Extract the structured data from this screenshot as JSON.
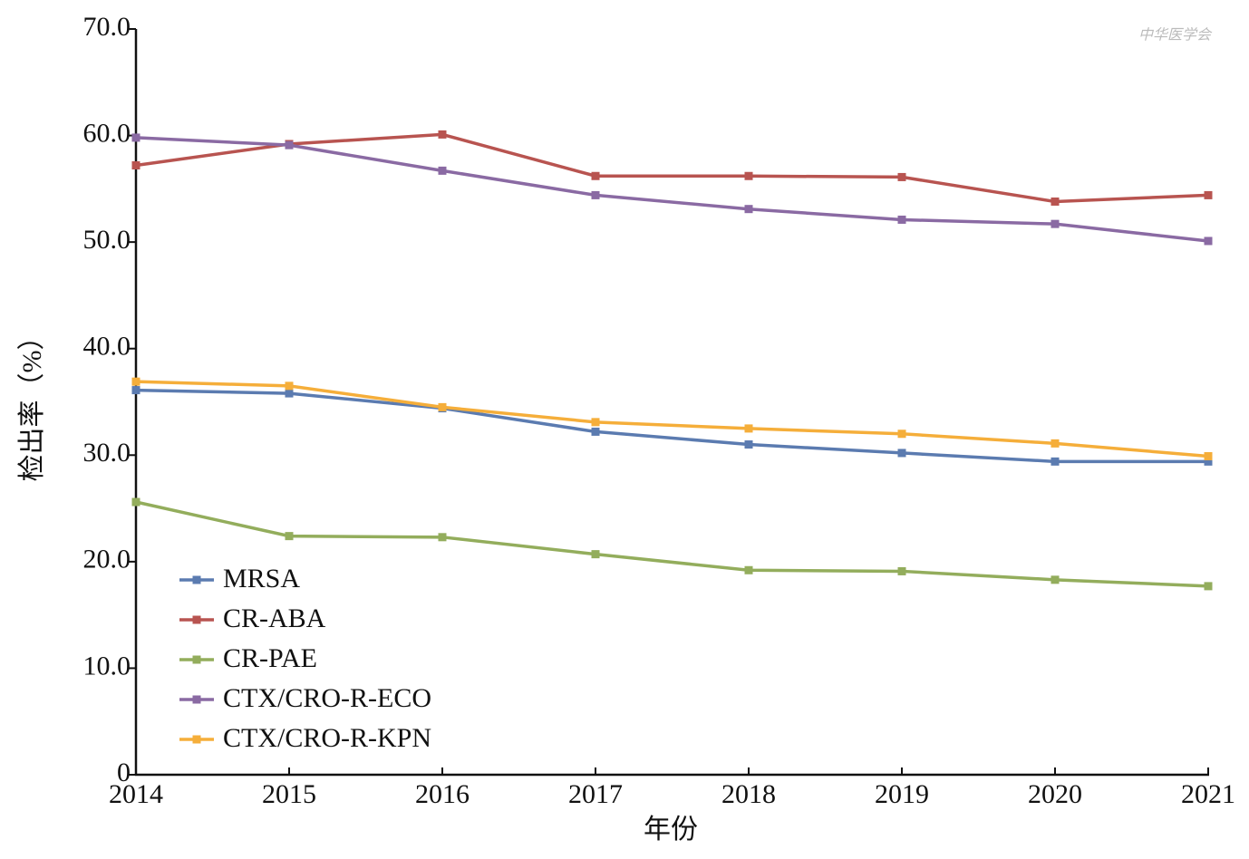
{
  "chart_data": {
    "type": "line",
    "watermark": "中华医学会",
    "x_label": "年份",
    "y_label": "检出率（%）",
    "categories": [
      "2014",
      "2015",
      "2016",
      "2017",
      "2018",
      "2019",
      "2020",
      "2021"
    ],
    "series": [
      {
        "name": "MRSA",
        "color": "#5b7bb0",
        "values": [
          36.1,
          35.8,
          34.4,
          32.2,
          31.0,
          30.2,
          29.4,
          29.4
        ]
      },
      {
        "name": "CR-ABA",
        "color": "#b85450",
        "values": [
          57.2,
          59.2,
          60.1,
          56.2,
          56.2,
          56.1,
          53.8,
          54.4
        ]
      },
      {
        "name": "CR-PAE",
        "color": "#93ad5c",
        "values": [
          25.6,
          22.4,
          22.3,
          20.7,
          19.2,
          19.1,
          18.3,
          17.7
        ]
      },
      {
        "name": "CTX/CRO-R-ECO",
        "color": "#8a6aa3",
        "values": [
          59.8,
          59.1,
          56.7,
          54.4,
          53.1,
          52.1,
          51.7,
          50.1
        ]
      },
      {
        "name": "CTX/CRO-R-KPN",
        "color": "#f5ae3a",
        "values": [
          36.9,
          36.5,
          34.5,
          33.1,
          32.5,
          32.0,
          31.1,
          29.9
        ]
      }
    ],
    "ylim": [
      0,
      70
    ],
    "yticks": [
      0,
      {
        "value": 10,
        "label": "10.0"
      },
      {
        "value": 20,
        "label": "20.0"
      },
      {
        "value": 30,
        "label": "30.0"
      },
      {
        "value": 40,
        "label": "40.0"
      },
      {
        "value": 50,
        "label": "50.0"
      },
      {
        "value": 60,
        "label": "60.0"
      },
      {
        "value": 70,
        "label": "70.0"
      }
    ],
    "grid": false,
    "legend": "lower-left"
  }
}
